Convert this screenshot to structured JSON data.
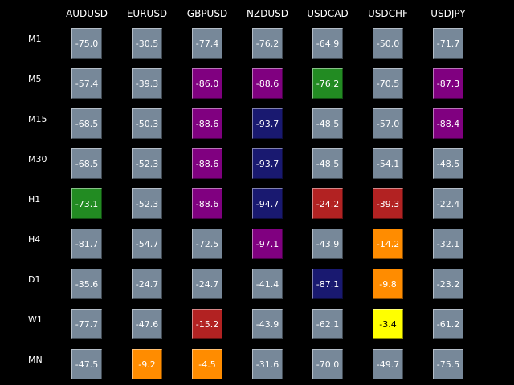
{
  "colors": {
    "background": "#000000",
    "text": "#ffffff",
    "neutral": "#778899",
    "green": "#228b22",
    "purple": "#800080",
    "navy": "#191970",
    "red": "#b22222",
    "orange": "#ff8c00",
    "yellow": "#ffff00"
  },
  "columns": [
    "AUDUSD",
    "EURUSD",
    "GBPUSD",
    "NZDUSD",
    "USDCAD",
    "USDCHF",
    "USDJPY"
  ],
  "rows": [
    {
      "label": "M1",
      "cells": [
        {
          "value": "-75.0",
          "color": "neutral"
        },
        {
          "value": "-30.5",
          "color": "neutral"
        },
        {
          "value": "-77.4",
          "color": "neutral"
        },
        {
          "value": "-76.2",
          "color": "neutral"
        },
        {
          "value": "-64.9",
          "color": "neutral"
        },
        {
          "value": "-50.0",
          "color": "neutral"
        },
        {
          "value": "-71.7",
          "color": "neutral"
        }
      ]
    },
    {
      "label": "M5",
      "cells": [
        {
          "value": "-57.4",
          "color": "neutral"
        },
        {
          "value": "-39.3",
          "color": "neutral"
        },
        {
          "value": "-86.0",
          "color": "purple"
        },
        {
          "value": "-88.6",
          "color": "purple"
        },
        {
          "value": "-76.2",
          "color": "green"
        },
        {
          "value": "-70.5",
          "color": "neutral"
        },
        {
          "value": "-87.3",
          "color": "purple"
        }
      ]
    },
    {
      "label": "M15",
      "cells": [
        {
          "value": "-68.5",
          "color": "neutral"
        },
        {
          "value": "-50.3",
          "color": "neutral"
        },
        {
          "value": "-88.6",
          "color": "purple"
        },
        {
          "value": "-93.7",
          "color": "navy"
        },
        {
          "value": "-48.5",
          "color": "neutral"
        },
        {
          "value": "-57.0",
          "color": "neutral"
        },
        {
          "value": "-88.4",
          "color": "purple"
        }
      ]
    },
    {
      "label": "M30",
      "cells": [
        {
          "value": "-68.5",
          "color": "neutral"
        },
        {
          "value": "-52.3",
          "color": "neutral"
        },
        {
          "value": "-88.6",
          "color": "purple"
        },
        {
          "value": "-93.7",
          "color": "navy"
        },
        {
          "value": "-48.5",
          "color": "neutral"
        },
        {
          "value": "-54.1",
          "color": "neutral"
        },
        {
          "value": "-48.5",
          "color": "neutral"
        }
      ]
    },
    {
      "label": "H1",
      "cells": [
        {
          "value": "-73.1",
          "color": "green"
        },
        {
          "value": "-52.3",
          "color": "neutral"
        },
        {
          "value": "-88.6",
          "color": "purple"
        },
        {
          "value": "-94.7",
          "color": "navy"
        },
        {
          "value": "-24.2",
          "color": "red"
        },
        {
          "value": "-39.3",
          "color": "red"
        },
        {
          "value": "-22.4",
          "color": "neutral"
        }
      ]
    },
    {
      "label": "H4",
      "cells": [
        {
          "value": "-81.7",
          "color": "neutral"
        },
        {
          "value": "-54.7",
          "color": "neutral"
        },
        {
          "value": "-72.5",
          "color": "neutral"
        },
        {
          "value": "-97.1",
          "color": "purple"
        },
        {
          "value": "-43.9",
          "color": "neutral"
        },
        {
          "value": "-14.2",
          "color": "orange"
        },
        {
          "value": "-32.1",
          "color": "neutral"
        }
      ]
    },
    {
      "label": "D1",
      "cells": [
        {
          "value": "-35.6",
          "color": "neutral"
        },
        {
          "value": "-24.7",
          "color": "neutral"
        },
        {
          "value": "-24.7",
          "color": "neutral"
        },
        {
          "value": "-41.4",
          "color": "neutral"
        },
        {
          "value": "-87.1",
          "color": "navy"
        },
        {
          "value": "-9.8",
          "color": "orange"
        },
        {
          "value": "-23.2",
          "color": "neutral"
        }
      ]
    },
    {
      "label": "W1",
      "cells": [
        {
          "value": "-77.7",
          "color": "neutral"
        },
        {
          "value": "-47.6",
          "color": "neutral"
        },
        {
          "value": "-15.2",
          "color": "red"
        },
        {
          "value": "-43.9",
          "color": "neutral"
        },
        {
          "value": "-62.1",
          "color": "neutral"
        },
        {
          "value": "-3.4",
          "color": "yellow"
        },
        {
          "value": "-61.2",
          "color": "neutral"
        }
      ]
    },
    {
      "label": "MN",
      "cells": [
        {
          "value": "-47.5",
          "color": "neutral"
        },
        {
          "value": "-9.2",
          "color": "orange"
        },
        {
          "value": "-4.5",
          "color": "orange"
        },
        {
          "value": "-31.6",
          "color": "neutral"
        },
        {
          "value": "-70.0",
          "color": "neutral"
        },
        {
          "value": "-49.7",
          "color": "neutral"
        },
        {
          "value": "-75.5",
          "color": "neutral"
        }
      ]
    }
  ]
}
